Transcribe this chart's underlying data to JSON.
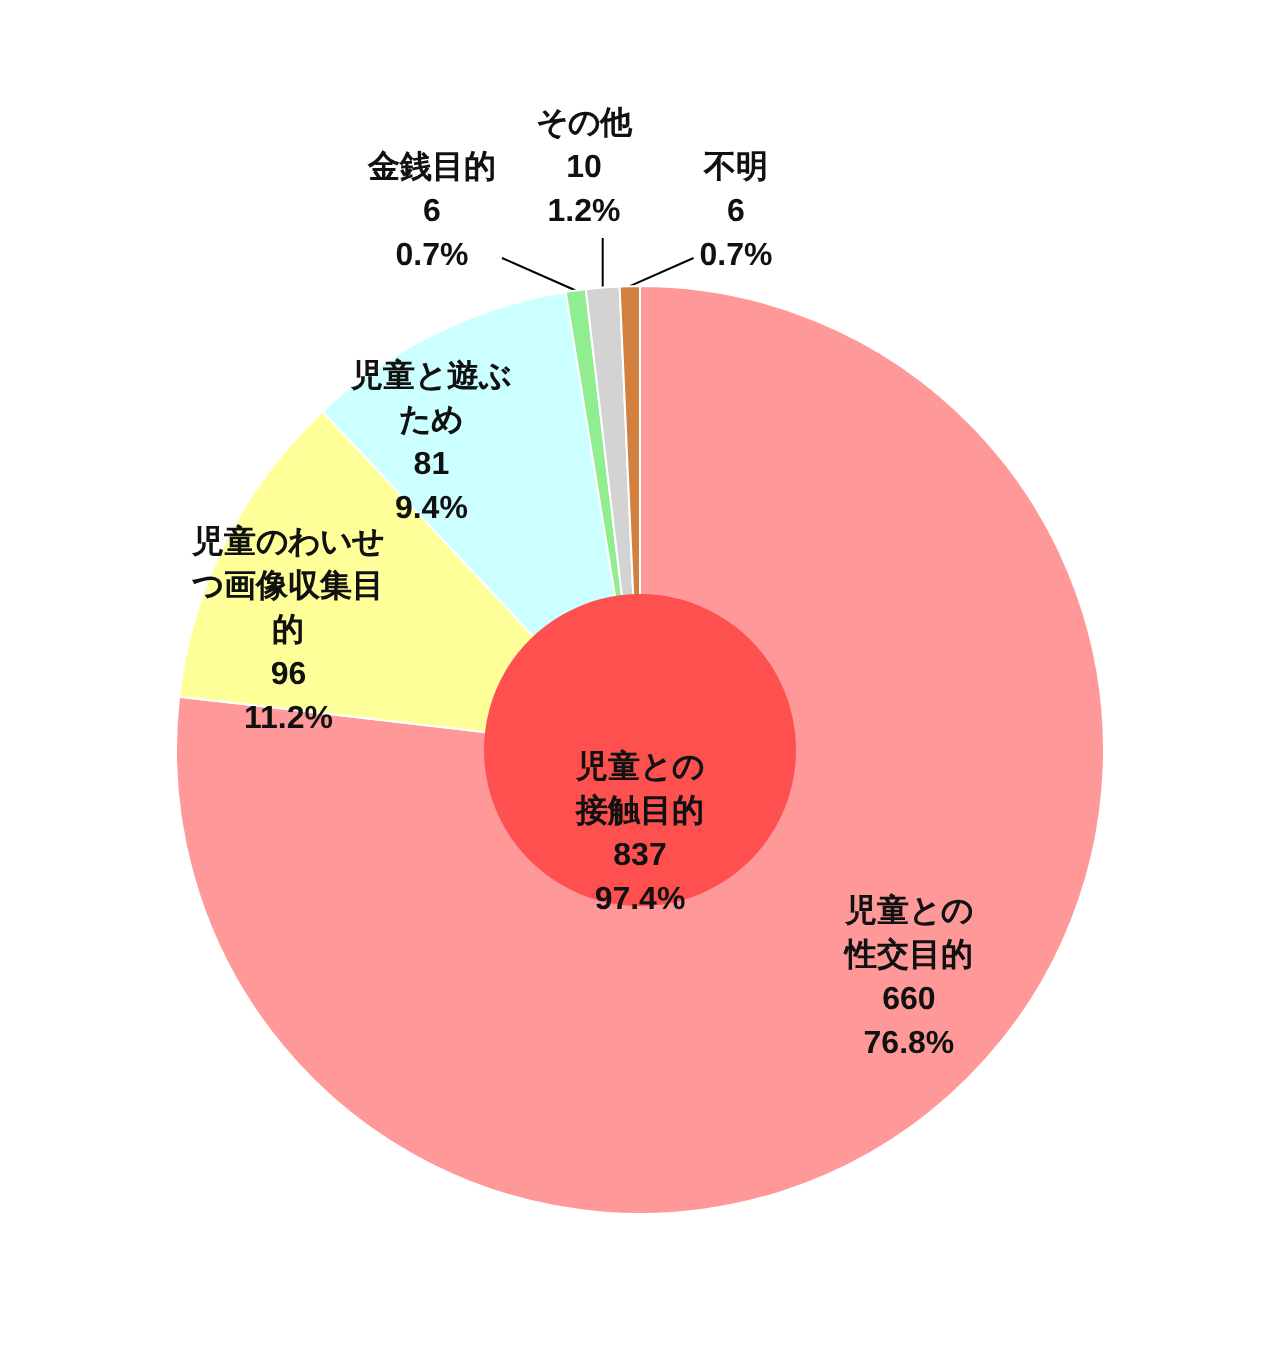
{
  "chart_data": [
    {
      "type": "pie",
      "categories": [
        "児童との性交目的",
        "児童のわいせつ画像収集目的",
        "児童と遊ぶため",
        "金銭目的",
        "その他",
        "不明"
      ],
      "values": [
        660,
        96,
        81,
        6,
        10,
        6
      ],
      "colors": [
        "#ff9999",
        "#ffff99",
        "#ccffff",
        "#90ee90",
        "#d3d3d3",
        "#d2803f"
      ],
      "value_labels": [
        "660\n76.8%",
        "96\n11.2%",
        "81\n9.4%",
        "6\n0.7%",
        "10\n1.2%",
        "6\n0.7%"
      ]
    },
    {
      "type": "pie",
      "categories": [
        "児童との接触目的"
      ],
      "values": [
        837
      ],
      "colors": [
        "#ff5050"
      ],
      "value_labels": [
        "837\n97.4%"
      ]
    }
  ]
}
